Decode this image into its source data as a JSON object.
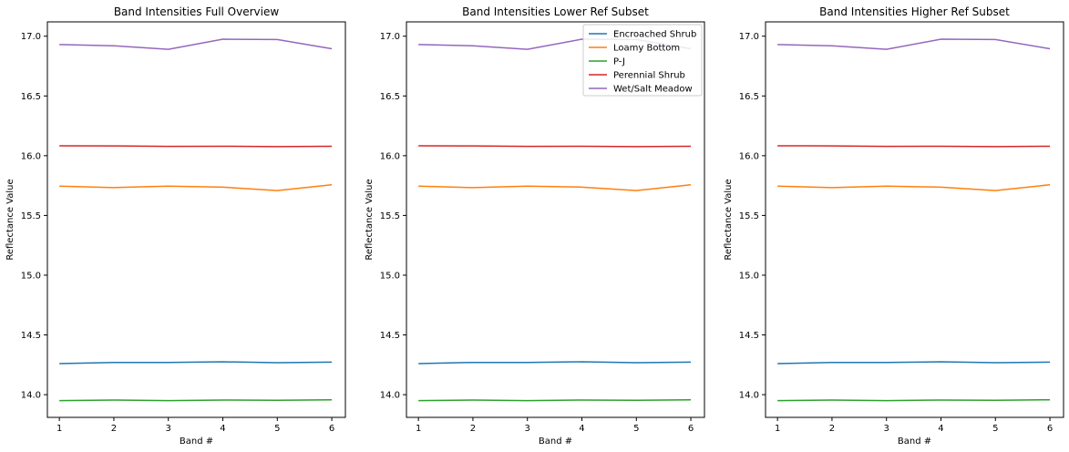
{
  "chart_data": [
    {
      "type": "line",
      "title": "Band Intensities Full Overview",
      "xlabel": "Band #",
      "ylabel": "Reflectance Value",
      "x": [
        1,
        2,
        3,
        4,
        5,
        6
      ],
      "xticks": [
        "1",
        "2",
        "3",
        "4",
        "5",
        "6"
      ],
      "yticks": [
        "14.0",
        "14.5",
        "15.0",
        "15.5",
        "16.0",
        "16.5",
        "17.0"
      ],
      "ylim": [
        13.81,
        17.12
      ],
      "xlim": [
        0.78,
        6.25
      ],
      "grid": false,
      "legend": null,
      "series": [
        {
          "name": "Encroached Shrub",
          "color": "#1f77b4",
          "values": [
            14.26,
            14.27,
            14.27,
            14.275,
            14.268,
            14.272
          ]
        },
        {
          "name": "Loamy Bottom",
          "color": "#ff7f0e",
          "values": [
            15.745,
            15.733,
            15.745,
            15.737,
            15.708,
            15.757
          ]
        },
        {
          "name": "P-J",
          "color": "#2ca02c",
          "values": [
            13.95,
            13.955,
            13.95,
            13.955,
            13.953,
            13.957
          ]
        },
        {
          "name": "Perennial Shrub",
          "color": "#d62728",
          "values": [
            16.083,
            16.082,
            16.078,
            16.079,
            16.076,
            16.079
          ]
        },
        {
          "name": "Wet/Salt Meadow",
          "color": "#9467bd",
          "values": [
            16.93,
            16.92,
            16.89,
            16.975,
            16.972,
            16.895
          ]
        }
      ]
    },
    {
      "type": "line",
      "title": "Band Intensities Lower Ref Subset",
      "xlabel": "Band #",
      "ylabel": "Reflectance Value",
      "x": [
        1,
        2,
        3,
        4,
        5,
        6
      ],
      "xticks": [
        "1",
        "2",
        "3",
        "4",
        "5",
        "6"
      ],
      "yticks": [
        "14.0",
        "14.5",
        "15.0",
        "15.5",
        "16.0",
        "16.5",
        "17.0"
      ],
      "ylim": [
        13.81,
        17.12
      ],
      "xlim": [
        0.78,
        6.25
      ],
      "grid": false,
      "legend": "top-right",
      "series": [
        {
          "name": "Encroached Shrub",
          "color": "#1f77b4",
          "values": [
            14.26,
            14.27,
            14.27,
            14.275,
            14.268,
            14.272
          ]
        },
        {
          "name": "Loamy Bottom",
          "color": "#ff7f0e",
          "values": [
            15.745,
            15.733,
            15.745,
            15.737,
            15.708,
            15.757
          ]
        },
        {
          "name": "P-J",
          "color": "#2ca02c",
          "values": [
            13.95,
            13.955,
            13.95,
            13.955,
            13.953,
            13.957
          ]
        },
        {
          "name": "Perennial Shrub",
          "color": "#d62728",
          "values": [
            16.083,
            16.082,
            16.078,
            16.079,
            16.076,
            16.079
          ]
        },
        {
          "name": "Wet/Salt Meadow",
          "color": "#9467bd",
          "values": [
            16.93,
            16.92,
            16.89,
            16.975,
            16.972,
            16.895
          ]
        }
      ]
    },
    {
      "type": "line",
      "title": "Band Intensities Higher Ref Subset",
      "xlabel": "Band #",
      "ylabel": "Reflectance Value",
      "x": [
        1,
        2,
        3,
        4,
        5,
        6
      ],
      "xticks": [
        "1",
        "2",
        "3",
        "4",
        "5",
        "6"
      ],
      "yticks": [
        "14.0",
        "14.5",
        "15.0",
        "15.5",
        "16.0",
        "16.5",
        "17.0"
      ],
      "ylim": [
        13.81,
        17.12
      ],
      "xlim": [
        0.78,
        6.25
      ],
      "grid": false,
      "legend": null,
      "series": [
        {
          "name": "Encroached Shrub",
          "color": "#1f77b4",
          "values": [
            14.26,
            14.27,
            14.27,
            14.275,
            14.268,
            14.272
          ]
        },
        {
          "name": "Loamy Bottom",
          "color": "#ff7f0e",
          "values": [
            15.745,
            15.733,
            15.745,
            15.737,
            15.708,
            15.757
          ]
        },
        {
          "name": "P-J",
          "color": "#2ca02c",
          "values": [
            13.95,
            13.955,
            13.95,
            13.955,
            13.953,
            13.957
          ]
        },
        {
          "name": "Perennial Shrub",
          "color": "#d62728",
          "values": [
            16.083,
            16.082,
            16.078,
            16.079,
            16.076,
            16.079
          ]
        },
        {
          "name": "Wet/Salt Meadow",
          "color": "#9467bd",
          "values": [
            16.93,
            16.92,
            16.89,
            16.975,
            16.972,
            16.895
          ]
        }
      ]
    }
  ]
}
